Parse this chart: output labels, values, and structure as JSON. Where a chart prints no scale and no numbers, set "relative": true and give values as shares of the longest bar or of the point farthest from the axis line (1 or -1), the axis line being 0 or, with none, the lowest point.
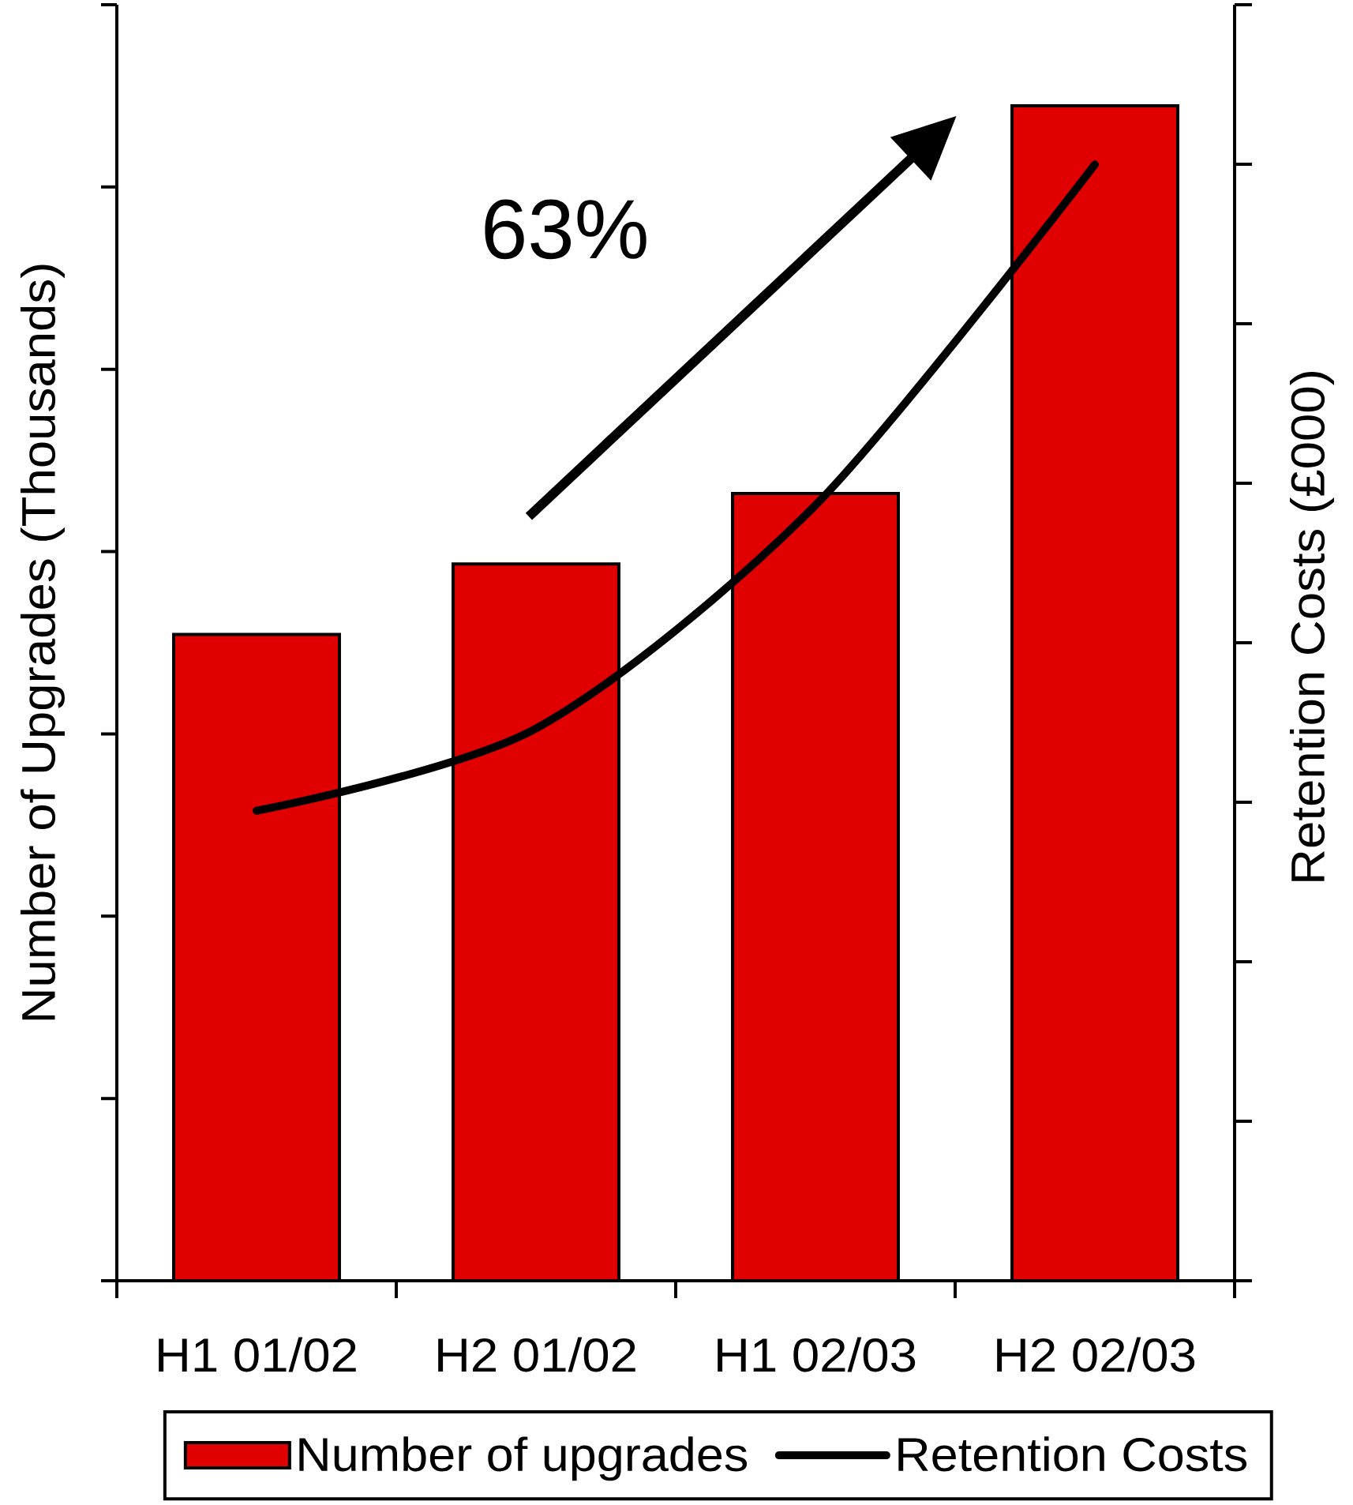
{
  "chart_data": {
    "type": "bar",
    "relative": true,
    "ylabel": "Number of Upgrades (Thousands)",
    "y2label": "Retention Costs (£000)",
    "categories": [
      "H1 01/02",
      "H2 01/02",
      "H1 02/03",
      "H2 02/03"
    ],
    "series": [
      {
        "name": "Number of upgrades",
        "color": "#e00000",
        "values": [
          0.55,
          0.61,
          0.67,
          1
        ]
      },
      {
        "name": "Retention Costs",
        "type": "line",
        "axis": "y2",
        "color": "#000000",
        "values": [
          0.4,
          0.47,
          0.66,
          0.95
        ]
      }
    ],
    "annotations": [
      "63%"
    ],
    "legend": "bottom"
  }
}
